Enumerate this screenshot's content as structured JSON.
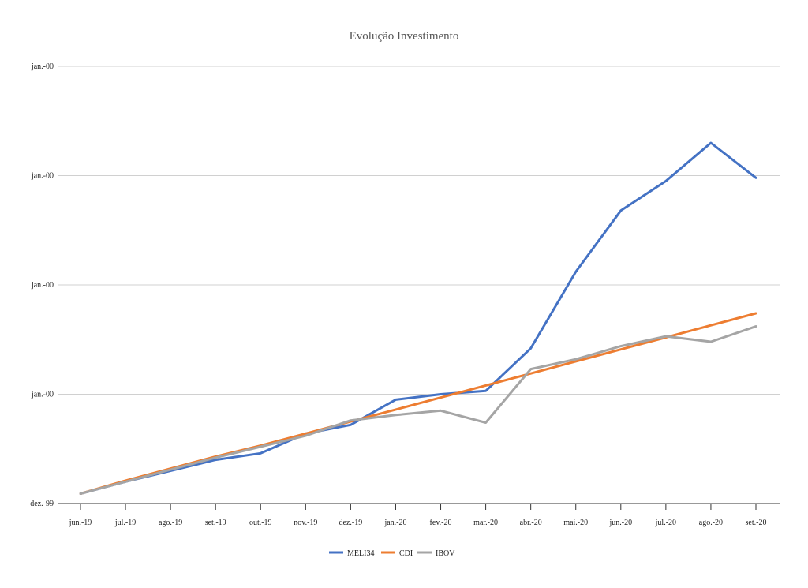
{
  "chart_data": {
    "type": "line",
    "title": "Evolução Investimento",
    "xlabel": "",
    "ylabel": "",
    "categories": [
      "jun.-19",
      "jul.-19",
      "ago.-19",
      "set.-19",
      "out.-19",
      "nov.-19",
      "dez.-19",
      "jan.-20",
      "fev.-20",
      "mar.-20",
      "abr.-20",
      "mai.-20",
      "jun.-20",
      "jul.-20",
      "ago.-20",
      "set.-20"
    ],
    "y_tick_labels": [
      "dez.-99",
      "jan.-00",
      "jan.-00",
      "jan.-00",
      "jan.-00"
    ],
    "ylim": [
      0,
      4
    ],
    "grid": true,
    "legend_position": "bottom",
    "series": [
      {
        "name": "MELI34",
        "color": "#4472c4",
        "values": [
          0.09,
          0.2,
          0.3,
          0.4,
          0.46,
          0.64,
          0.72,
          0.95,
          1.0,
          1.03,
          1.42,
          2.12,
          2.68,
          2.95,
          3.3,
          2.98
        ]
      },
      {
        "name": "CDI",
        "color": "#ed7d31",
        "values": [
          0.09,
          0.21,
          0.32,
          0.43,
          0.53,
          0.64,
          0.75,
          0.86,
          0.97,
          1.08,
          1.19,
          1.3,
          1.41,
          1.52,
          1.63,
          1.74
        ]
      },
      {
        "name": "IBOV",
        "color": "#a5a5a5",
        "values": [
          0.09,
          0.2,
          0.31,
          0.42,
          0.52,
          0.62,
          0.76,
          0.81,
          0.85,
          0.74,
          1.23,
          1.32,
          1.44,
          1.53,
          1.48,
          1.62
        ]
      }
    ]
  }
}
